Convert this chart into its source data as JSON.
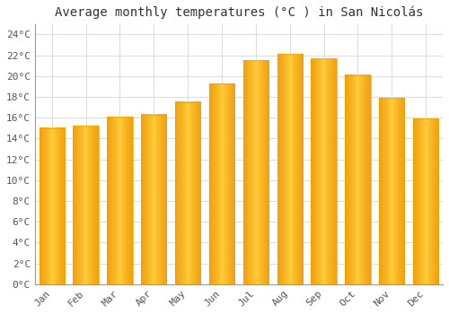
{
  "title": "Average monthly temperatures (°C ) in San Nicolás",
  "months": [
    "Jan",
    "Feb",
    "Mar",
    "Apr",
    "May",
    "Jun",
    "Jul",
    "Aug",
    "Sep",
    "Oct",
    "Nov",
    "Dec"
  ],
  "values": [
    15.0,
    15.2,
    16.1,
    16.3,
    17.5,
    19.3,
    21.5,
    22.1,
    21.7,
    20.1,
    17.9,
    15.9
  ],
  "bar_color_center": "#FFD050",
  "bar_color_edge": "#F0A000",
  "background_color": "#FFFFFF",
  "grid_color": "#DDDDDD",
  "ylim": [
    0,
    25
  ],
  "ytick_step": 2,
  "title_fontsize": 10,
  "tick_fontsize": 8,
  "bar_width": 0.75
}
